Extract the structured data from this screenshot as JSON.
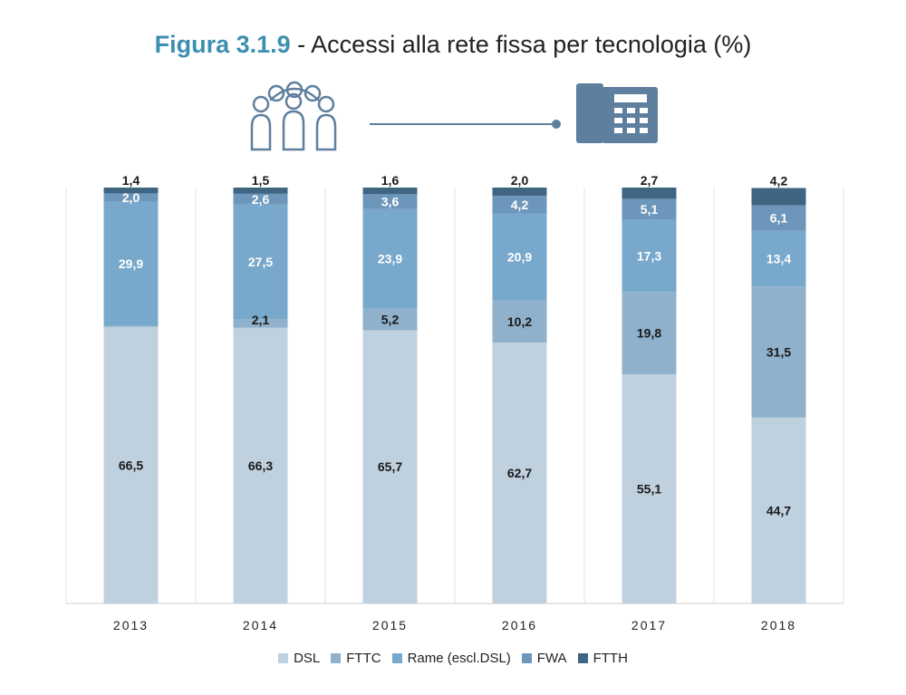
{
  "title": {
    "figure_label": "Figura 3.1.9",
    "separator": " - ",
    "text": "Accessi alla rete fissa per tecnologia (%)"
  },
  "illustration": {
    "left_icon": "people-group-icon",
    "right_icon": "desk-phone-icon",
    "color": "#5f7f9e"
  },
  "chart_data": {
    "type": "bar",
    "stacked": true,
    "categories": [
      "2013",
      "2014",
      "2015",
      "2016",
      "2017",
      "2018"
    ],
    "series": [
      {
        "name": "DSL",
        "color": "#bfd0df",
        "values": [
          66.5,
          66.3,
          65.7,
          62.7,
          55.1,
          44.7
        ],
        "labels": [
          "66,5",
          "66,3",
          "65,7",
          "62,7",
          "55,1",
          "44,7"
        ]
      },
      {
        "name": "FTTC",
        "color": "#8fb1cb",
        "values": [
          0.2,
          2.1,
          5.2,
          10.2,
          19.8,
          31.5
        ],
        "labels": [
          "",
          "2,1",
          "5,2",
          "10,2",
          "19,8",
          "31,5"
        ]
      },
      {
        "name": "Rame (escl.DSL)",
        "color": "#78a8cb",
        "values": [
          29.9,
          27.5,
          23.9,
          20.9,
          17.3,
          13.4
        ],
        "labels": [
          "29,9",
          "27,5",
          "23,9",
          "20,9",
          "17,3",
          "13,4"
        ]
      },
      {
        "name": "FWA",
        "color": "#6d97ba",
        "values": [
          2.0,
          2.6,
          3.6,
          4.2,
          5.1,
          6.1
        ],
        "labels": [
          "2,0",
          "2,6",
          "3,6",
          "4,2",
          "5,1",
          "6,1"
        ]
      },
      {
        "name": "FTTH",
        "color": "#406583",
        "values": [
          1.4,
          1.5,
          1.6,
          2.0,
          2.7,
          4.2
        ],
        "labels": [
          "1,4",
          "1,5",
          "1,6",
          "2,0",
          "2,7",
          "4,2"
        ]
      }
    ],
    "ylim": [
      0,
      100
    ],
    "legend_position": "bottom",
    "grid": "vertical",
    "xlabel": "",
    "ylabel": ""
  }
}
